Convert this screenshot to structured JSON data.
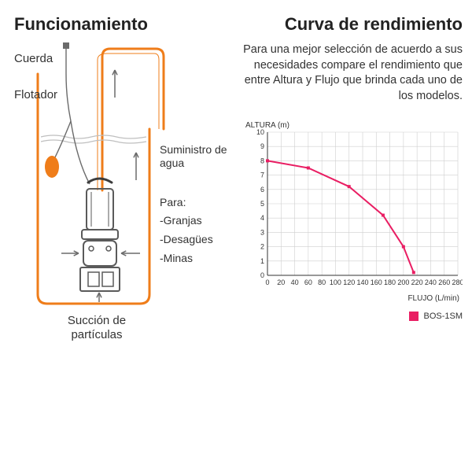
{
  "left": {
    "title": "Funcionamiento",
    "labels": {
      "cuerda": "Cuerda",
      "flotador": "Flotador",
      "suministro": "Suministro de agua",
      "para": "Para:",
      "granjas": "-Granjas",
      "desagues": "-Desagües",
      "minas": "-Minas",
      "succion": "Succión de partículas"
    },
    "diagram": {
      "stroke_main": "#ef7d1a",
      "stroke_thin": "#ef7d1a",
      "stroke_gray": "#6b6b6b",
      "pump_body": "#5a5a5a",
      "pump_dark": "#3c3c3c",
      "float_fill": "#ef7d1a",
      "water_lines": "#bfbfbf",
      "line_width_tank": 3,
      "line_width_pipe": 3,
      "line_width_thin": 1.5
    }
  },
  "right": {
    "title": "Curva de rendimiento",
    "subtitle": "Para una mejor selección de acuerdo a sus necesidades compare el rendimiento que entre Altura y Flujo que brinda cada uno de los modelos.",
    "chart": {
      "type": "line",
      "series_name": "BOS-1SM",
      "series_color": "#e91e63",
      "marker_color": "#e91e63",
      "line_width": 2,
      "marker_size": 4,
      "x_label": "FLUJO (L/min)",
      "y_label": "ALTURA (m)",
      "xlim": [
        0,
        280
      ],
      "ylim": [
        0,
        10
      ],
      "xtick_step": 20,
      "ytick_step": 1,
      "grid_color": "#cfcfcf",
      "axis_color": "#333333",
      "background": "#ffffff",
      "label_fontsize": 10,
      "tick_fontsize": 9,
      "points": [
        {
          "x": 0,
          "y": 8.0
        },
        {
          "x": 60,
          "y": 7.5
        },
        {
          "x": 120,
          "y": 6.2
        },
        {
          "x": 170,
          "y": 4.2
        },
        {
          "x": 200,
          "y": 2.0
        },
        {
          "x": 215,
          "y": 0.2
        }
      ]
    }
  }
}
